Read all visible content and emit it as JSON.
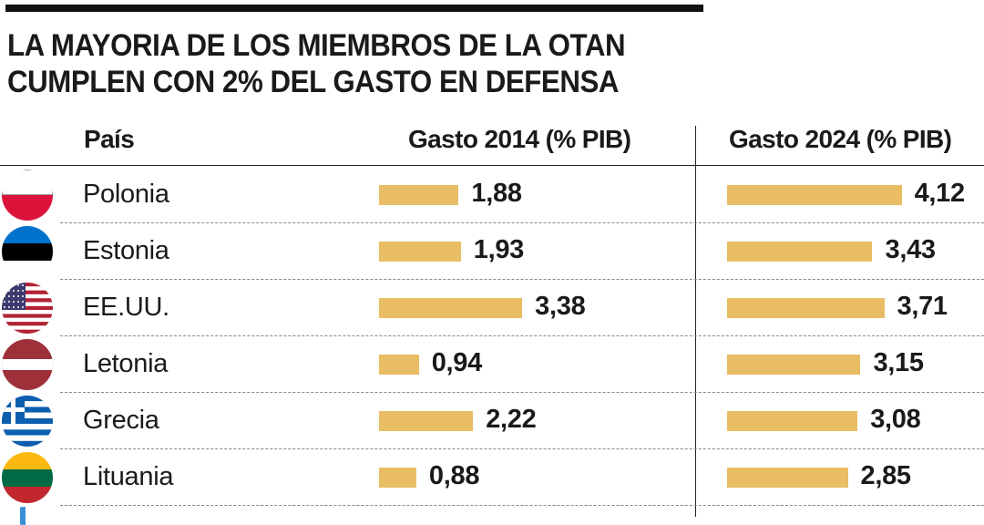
{
  "title_line1": "LA MAYORIA DE LOS MIEMBROS DE LA OTAN",
  "title_line2": "CUMPLEN CON 2% DEL GASTO EN DEFENSA",
  "headers": {
    "country": "País",
    "col2014": "Gasto 2014 (% PIB)",
    "col2024": "Gasto 2024 (% PIB)"
  },
  "colors": {
    "bar": "#e8bd63",
    "text": "#1a1a1a",
    "rule": "#111111"
  },
  "chart_data": {
    "type": "bar",
    "orientation": "horizontal",
    "categories": [
      "Polonia",
      "Estonia",
      "EE.UU.",
      "Letonia",
      "Grecia",
      "Lituania"
    ],
    "series": [
      {
        "name": "Gasto 2014 (% PIB)",
        "values": [
          1.88,
          1.93,
          3.38,
          0.94,
          2.22,
          0.88
        ],
        "labels": [
          "1,88",
          "1,93",
          "3,38",
          "0,94",
          "2,22",
          "0,88"
        ]
      },
      {
        "name": "Gasto 2024 (% PIB)",
        "values": [
          4.12,
          3.43,
          3.71,
          3.15,
          3.08,
          2.85
        ],
        "labels": [
          "4,12",
          "3,43",
          "3,71",
          "3,15",
          "3,08",
          "2,85"
        ]
      }
    ],
    "flags": [
      "poland-flag-icon",
      "estonia-flag-icon",
      "usa-flag-icon",
      "latvia-flag-icon",
      "greece-flag-icon",
      "lithuania-flag-icon"
    ],
    "title": "LA MAYORIA DE LOS MIEMBROS DE LA OTAN CUMPLEN CON 2% DEL GASTO EN DEFENSA",
    "grid": false
  }
}
